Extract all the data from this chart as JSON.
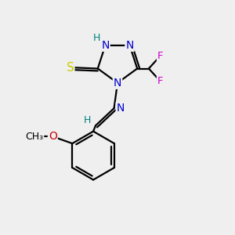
{
  "background_color": "#efefef",
  "atom_colors": {
    "C": "#000000",
    "N": "#0000cc",
    "H": "#008080",
    "S": "#cccc00",
    "F": "#cc00cc",
    "O": "#cc0000"
  },
  "bond_color": "#000000",
  "bond_width": 1.6,
  "font_size_atoms": 10,
  "font_size_small": 8.5
}
